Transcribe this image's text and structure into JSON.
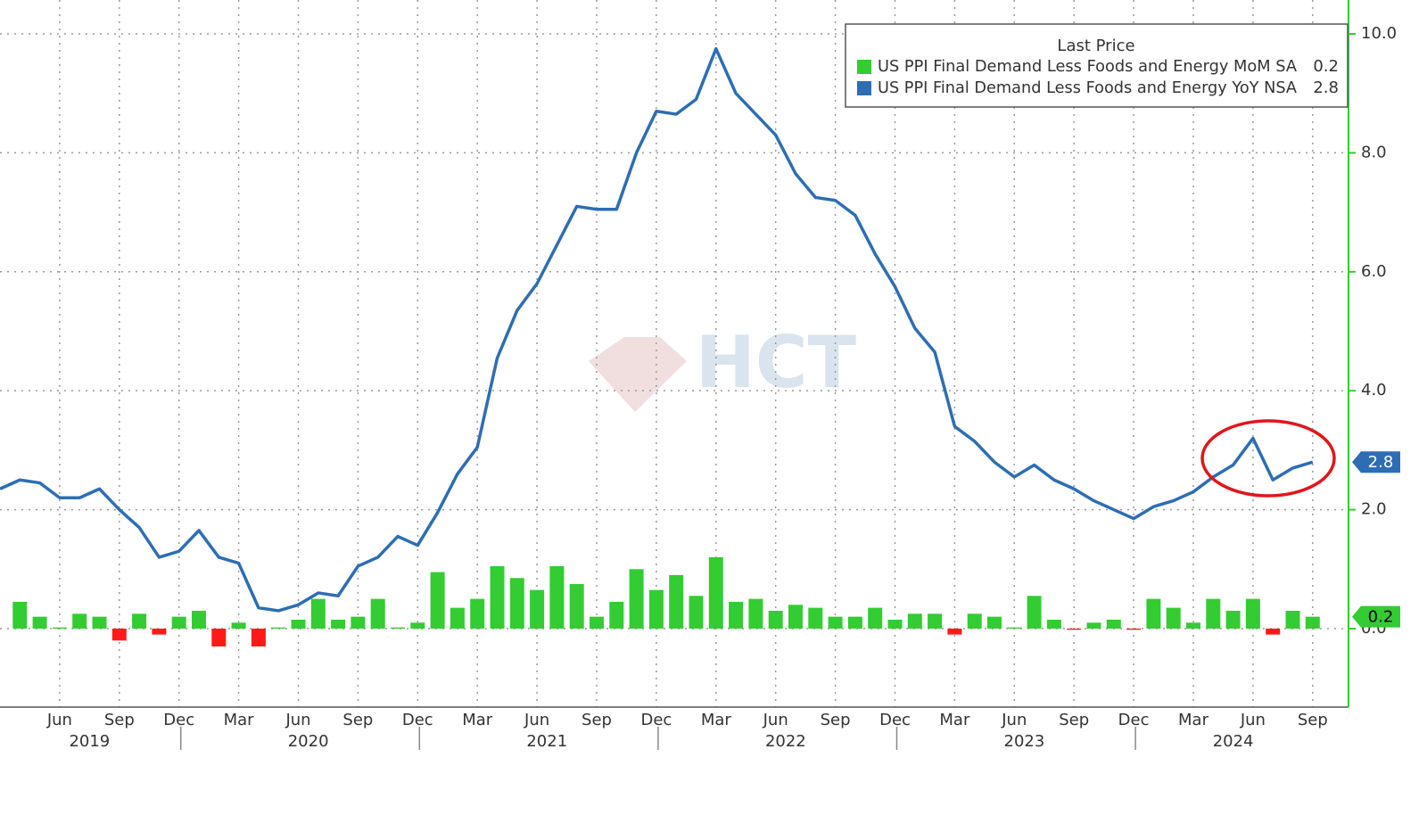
{
  "chart_data": {
    "type": "bar-line",
    "legend_title": "Last Price",
    "legend": "upper right",
    "watermark": "HCT",
    "x": [
      "2019-03",
      "2019-04",
      "2019-05",
      "2019-06",
      "2019-07",
      "2019-08",
      "2019-09",
      "2019-10",
      "2019-11",
      "2019-12",
      "2020-01",
      "2020-02",
      "2020-03",
      "2020-04",
      "2020-05",
      "2020-06",
      "2020-07",
      "2020-08",
      "2020-09",
      "2020-10",
      "2020-11",
      "2020-12",
      "2021-01",
      "2021-02",
      "2021-03",
      "2021-04",
      "2021-05",
      "2021-06",
      "2021-07",
      "2021-08",
      "2021-09",
      "2021-10",
      "2021-11",
      "2021-12",
      "2022-01",
      "2022-02",
      "2022-03",
      "2022-04",
      "2022-05",
      "2022-06",
      "2022-07",
      "2022-08",
      "2022-09",
      "2022-10",
      "2022-11",
      "2022-12",
      "2023-01",
      "2023-02",
      "2023-03",
      "2023-04",
      "2023-05",
      "2023-06",
      "2023-07",
      "2023-08",
      "2023-09",
      "2023-10",
      "2023-11",
      "2023-12",
      "2024-01",
      "2024-02",
      "2024-03",
      "2024-04",
      "2024-05",
      "2024-06",
      "2024-07",
      "2024-08",
      "2024-09"
    ],
    "series": [
      {
        "name": "US PPI Final Demand Less Foods and Energy MoM SA",
        "type": "bar",
        "color": "#33cc33",
        "negative_color": "#ff1a1a",
        "values": [
          null,
          0.45,
          0.2,
          0.02,
          0.25,
          0.2,
          -0.2,
          0.25,
          -0.1,
          0.2,
          0.3,
          -0.3,
          0.1,
          -0.3,
          0.02,
          0.15,
          0.5,
          0.15,
          0.2,
          0.5,
          0.02,
          0.1,
          0.95,
          0.35,
          0.5,
          1.05,
          0.85,
          0.65,
          1.05,
          0.75,
          0.2,
          0.45,
          1.0,
          0.65,
          0.9,
          0.55,
          1.2,
          0.45,
          0.5,
          0.3,
          0.4,
          0.35,
          0.2,
          0.2,
          0.35,
          0.15,
          0.25,
          0.25,
          -0.1,
          0.25,
          0.2,
          0.02,
          0.55,
          0.15,
          -0.02,
          0.1,
          0.15,
          -0.02,
          0.5,
          0.35,
          0.1,
          0.5,
          0.3,
          0.5,
          -0.1,
          0.3,
          0.2
        ]
      },
      {
        "name": "US PPI Final Demand Less Foods and Energy YoY NSA",
        "type": "line",
        "color": "#2e6db4",
        "values": [
          2.35,
          2.5,
          2.45,
          2.2,
          2.2,
          2.35,
          2.0,
          1.7,
          1.2,
          1.3,
          1.65,
          1.2,
          1.1,
          0.35,
          0.3,
          0.4,
          0.6,
          0.55,
          1.05,
          1.2,
          1.55,
          1.4,
          1.95,
          2.6,
          3.05,
          4.55,
          5.35,
          5.8,
          6.45,
          7.1,
          7.05,
          7.05,
          8.0,
          8.7,
          8.65,
          8.9,
          9.75,
          9.0,
          8.65,
          8.3,
          7.65,
          7.25,
          7.2,
          6.95,
          6.3,
          5.75,
          5.05,
          4.65,
          3.4,
          3.15,
          2.8,
          2.55,
          2.75,
          2.5,
          2.35,
          2.15,
          2.0,
          1.85,
          2.05,
          2.15,
          2.3,
          2.55,
          2.75,
          3.2,
          2.5,
          2.7,
          2.8
        ]
      }
    ],
    "xticks": [
      {
        "value": "2019-06",
        "label": "Jun"
      },
      {
        "value": "2019-09",
        "label": "Sep"
      },
      {
        "value": "2019-12",
        "label": "Dec"
      },
      {
        "value": "2020-03",
        "label": "Mar"
      },
      {
        "value": "2020-06",
        "label": "Jun"
      },
      {
        "value": "2020-09",
        "label": "Sep"
      },
      {
        "value": "2020-12",
        "label": "Dec"
      },
      {
        "value": "2021-03",
        "label": "Mar"
      },
      {
        "value": "2021-06",
        "label": "Jun"
      },
      {
        "value": "2021-09",
        "label": "Sep"
      },
      {
        "value": "2021-12",
        "label": "Dec"
      },
      {
        "value": "2022-03",
        "label": "Mar"
      },
      {
        "value": "2022-06",
        "label": "Jun"
      },
      {
        "value": "2022-09",
        "label": "Sep"
      },
      {
        "value": "2022-12",
        "label": "Dec"
      },
      {
        "value": "2023-03",
        "label": "Mar"
      },
      {
        "value": "2023-06",
        "label": "Jun"
      },
      {
        "value": "2023-09",
        "label": "Sep"
      },
      {
        "value": "2023-12",
        "label": "Dec"
      },
      {
        "value": "2024-03",
        "label": "Mar"
      },
      {
        "value": "2024-06",
        "label": "Jun"
      },
      {
        "value": "2024-09",
        "label": "Sep"
      }
    ],
    "years": [
      "2019",
      "2020",
      "2021",
      "2022",
      "2023",
      "2024"
    ],
    "ylim": [
      -1.32,
      10.57
    ],
    "yticks": [
      {
        "value": 0,
        "label": "0.0"
      },
      {
        "value": 2,
        "label": "2.0"
      },
      {
        "value": 4,
        "label": "4.0"
      },
      {
        "value": 6,
        "label": "6.0"
      },
      {
        "value": 8,
        "label": "8.0"
      },
      {
        "value": 10,
        "label": "10.0"
      }
    ],
    "grid": true
  }
}
